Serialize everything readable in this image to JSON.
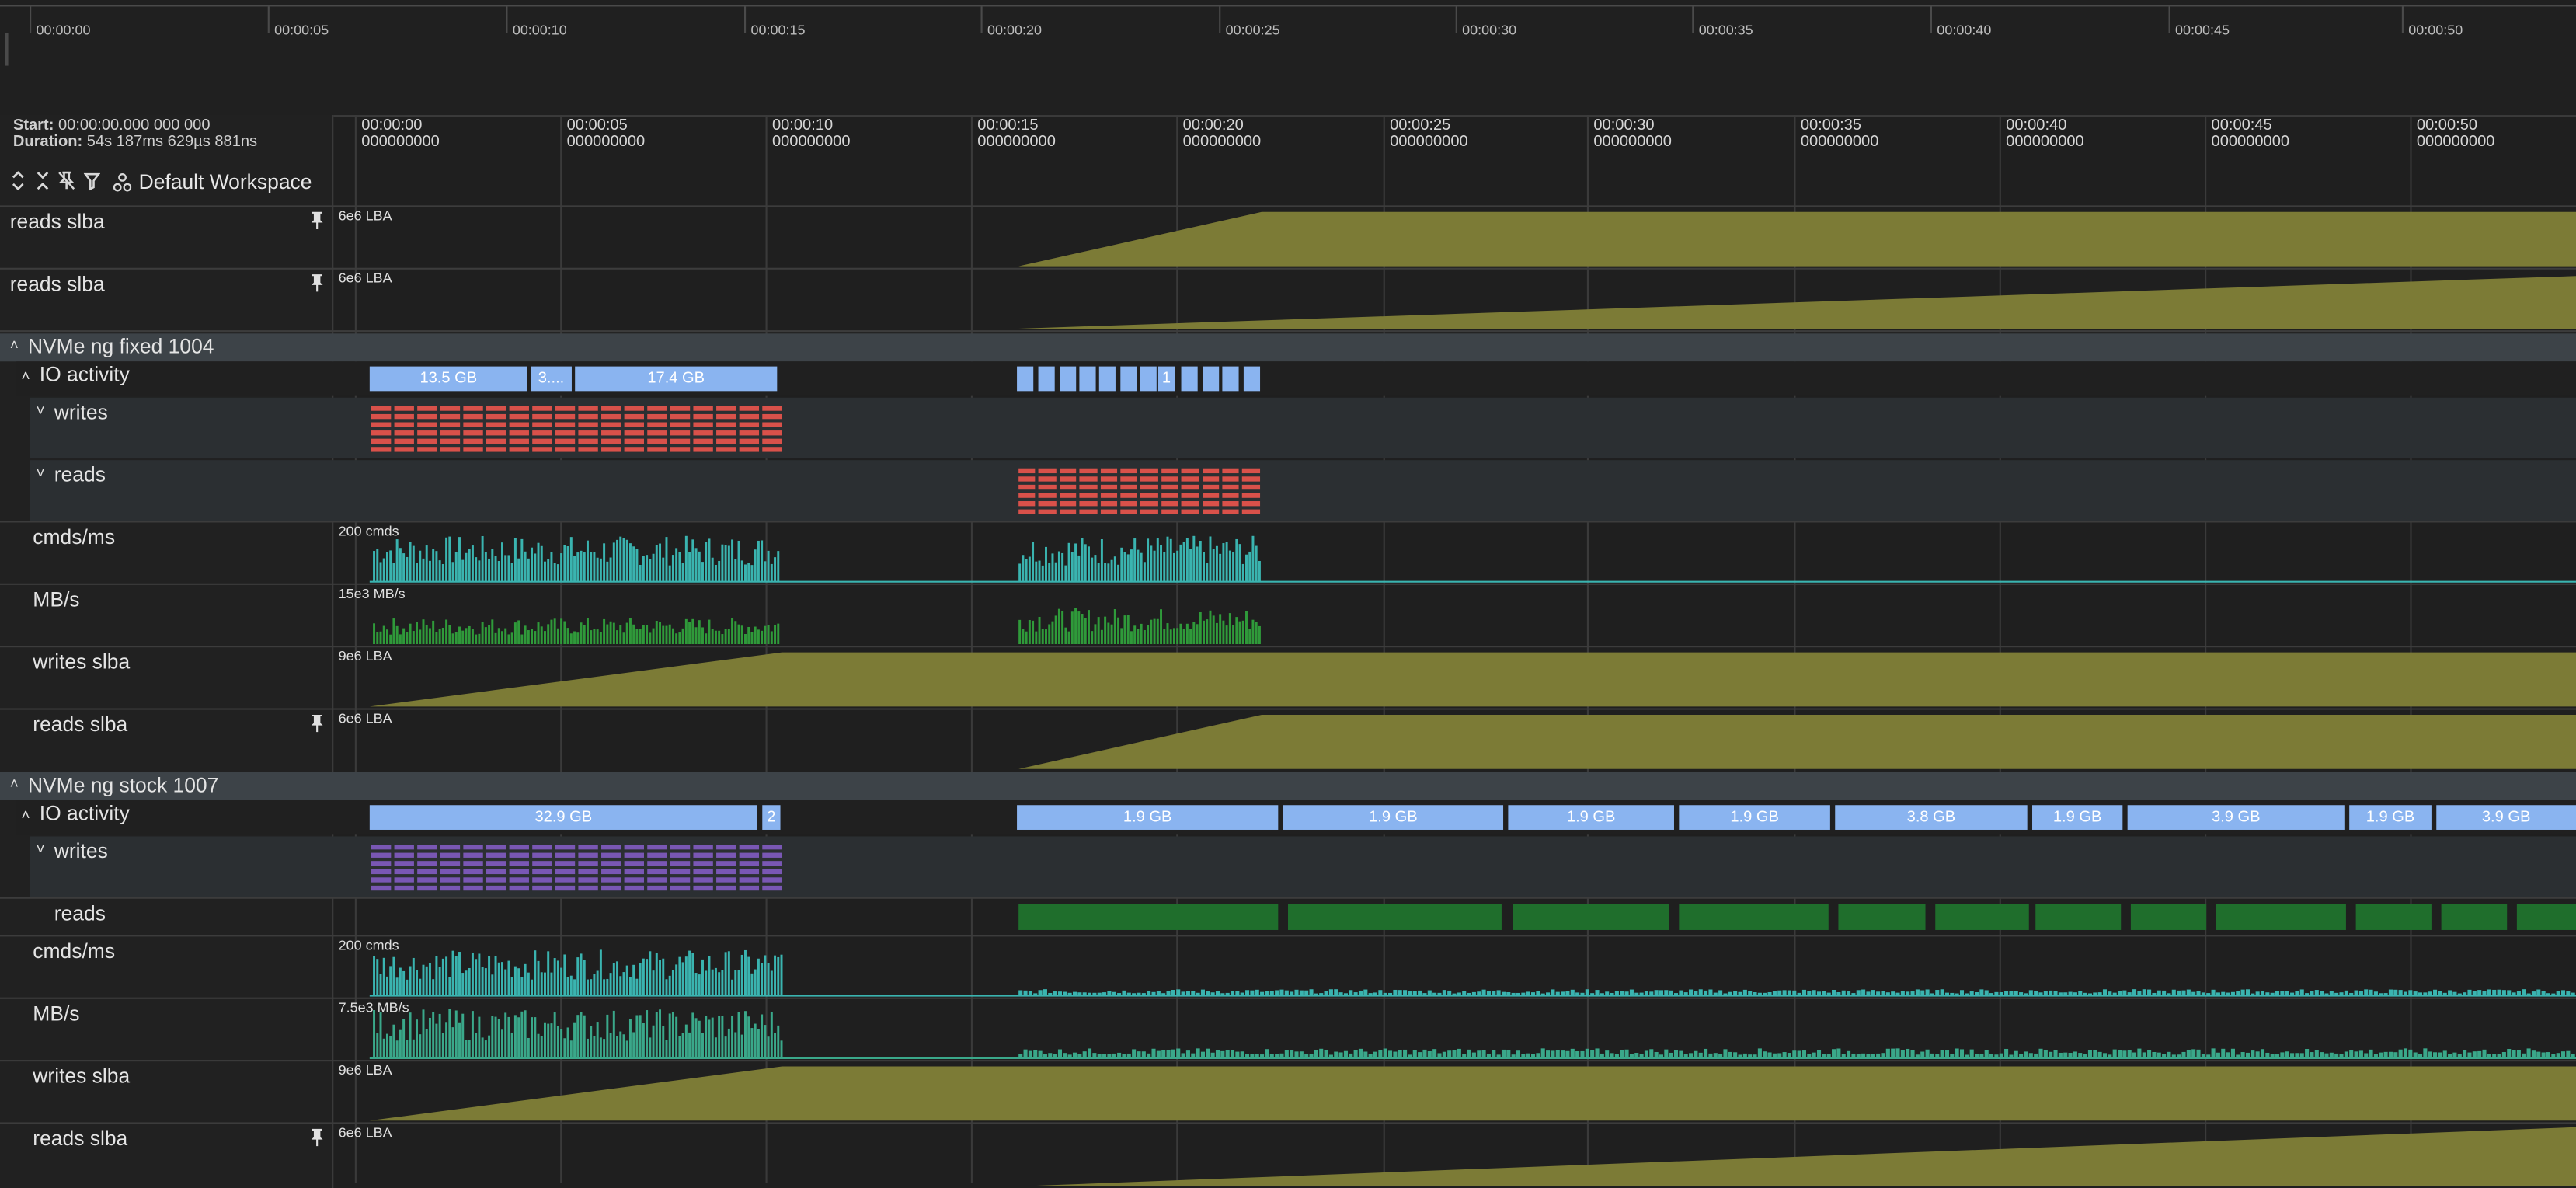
{
  "overview": {
    "ticks": [
      "00:00:00",
      "00:00:05",
      "00:00:10",
      "00:00:15",
      "00:00:20",
      "00:00:25",
      "00:00:30",
      "00:00:35",
      "00:00:40",
      "00:00:45",
      "00:00:50"
    ]
  },
  "info": {
    "start_label": "Start:",
    "start_value": "00:00:00.000 000 000",
    "duration_label": "Duration:",
    "duration_value": "54s 187ms 629µs 881ns",
    "workspace": "Default Workspace"
  },
  "timeline": {
    "ticks": [
      "00:00:00",
      "00:00:05",
      "00:00:10",
      "00:00:15",
      "00:00:20",
      "00:00:25",
      "00:00:30",
      "00:00:35",
      "00:00:40",
      "00:00:45",
      "00:00:50"
    ],
    "subticks": [
      "000000000",
      "000000000",
      "000000000",
      "000000000",
      "000000000",
      "000000000",
      "000000000",
      "000000000",
      "000000000",
      "000000000",
      "000000000"
    ]
  },
  "pinned": [
    {
      "label": "reads slba",
      "scale": "6e6 LBA"
    },
    {
      "label": "reads slba",
      "scale": "6e6 LBA"
    }
  ],
  "group1": {
    "title": "NVMe ng fixed 1004",
    "io_label": "IO activity",
    "slices": [
      "13.5 GB",
      "3....",
      "17.4 GB",
      "1"
    ],
    "writes_label": "writes",
    "reads_label": "reads",
    "cmds_label": "cmds/ms",
    "cmds_scale": "200 cmds",
    "mbs_label": "MB/s",
    "mbs_scale": "15e3 MB/s",
    "wslba_label": "writes slba",
    "wslba_scale": "9e6 LBA",
    "rslba_label": "reads slba",
    "rslba_scale": "6e6 LBA"
  },
  "group2": {
    "title": "NVMe ng stock 1007",
    "io_label": "IO activity",
    "slices": [
      "32.9 GB",
      "2",
      "1.9 GB",
      "1.9 GB",
      "1.9 GB",
      "1.9 GB",
      "3.8 GB",
      "1.9 GB",
      "3.9 GB",
      "1.9 GB",
      "3.9 GB"
    ],
    "writes_label": "writes",
    "reads_label": "reads",
    "cmds_label": "cmds/ms",
    "cmds_scale": "200 cmds",
    "mbs_label": "MB/s",
    "mbs_scale": "7.5e3 MB/s",
    "wslba_label": "writes slba",
    "wslba_scale": "9e6 LBA",
    "rslba_label": "reads slba",
    "rslba_scale": "6e6 LBA"
  },
  "colors": {
    "slba": "#7c7b36",
    "slice": "#8ab4f0",
    "writes_red": "#d9514a",
    "writes_purple": "#7957b4",
    "reads_green": "#1f6e2c",
    "cmds": "#3ab4b0",
    "mbs": "#2f9a3a",
    "mbs2": "#3aa88a"
  }
}
